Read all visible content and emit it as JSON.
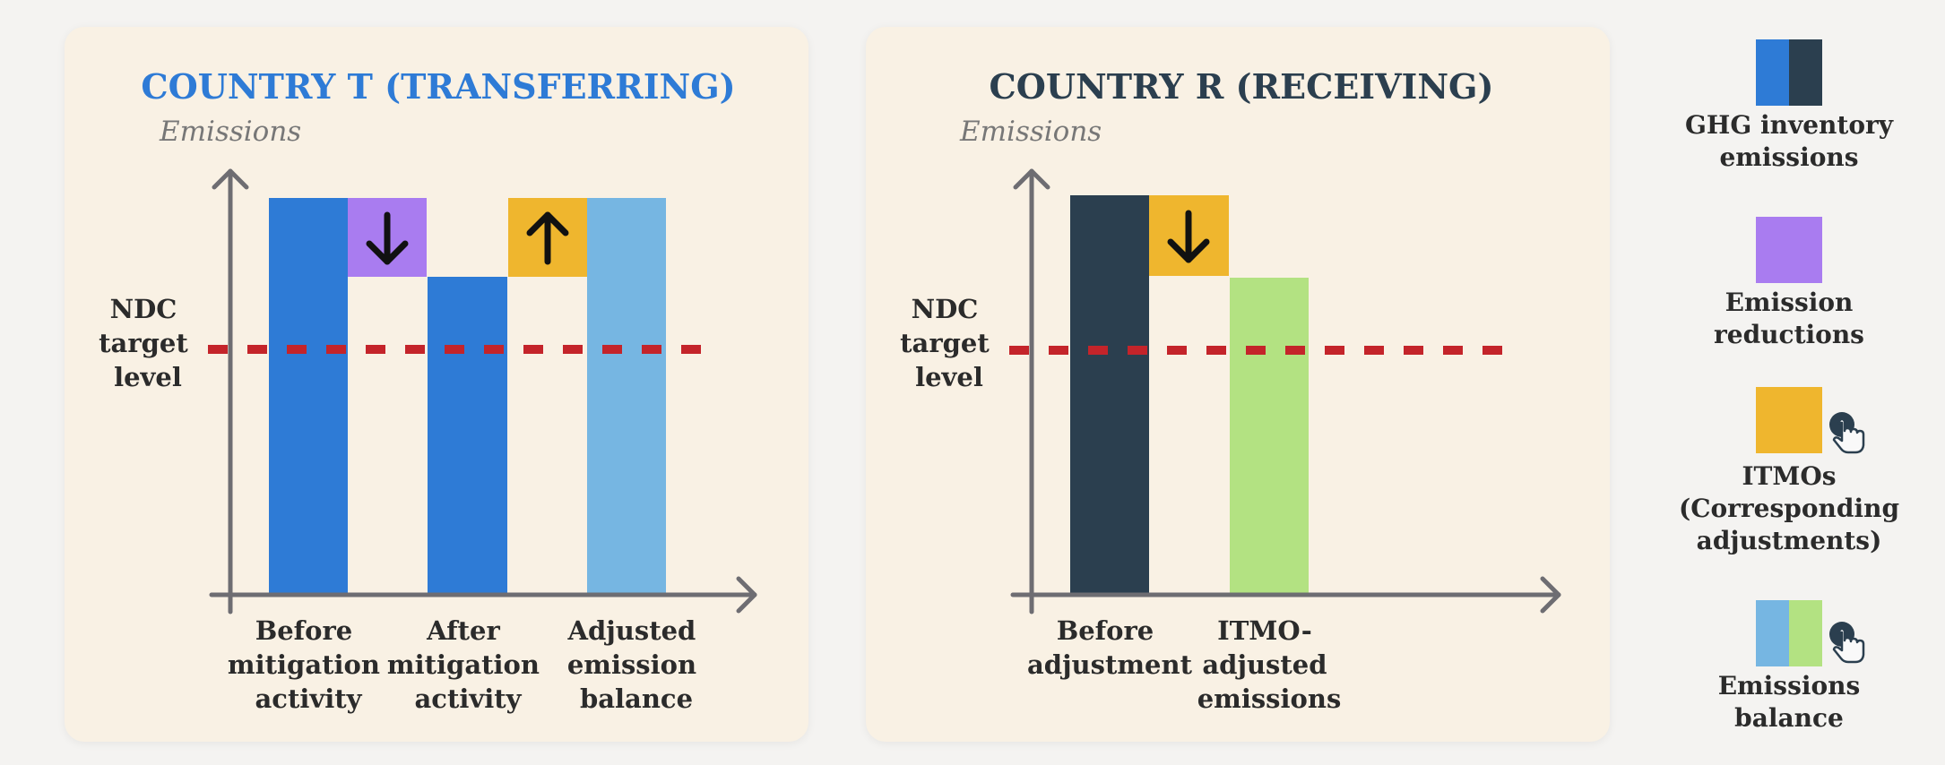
{
  "colors": {
    "ghg_t": "#2e7bd6",
    "ghg_r": "#2b3f4f",
    "reduction": "#a97cf0",
    "itmo": "#efb62e",
    "balance_t": "#76b6e2",
    "balance_r": "#b3e282",
    "ndc_line": "#c4242a",
    "axis": "#6e6d72",
    "title_t": "#2e7bd6",
    "title_r": "#2b3f4f"
  },
  "panel_t": {
    "title": "COUNTRY T (TRANSFERRING)",
    "y_axis_label": "Emissions",
    "ndc_label": [
      "NDC",
      "target",
      "level"
    ],
    "categories": [
      [
        "Before",
        "mitigation",
        "activity"
      ],
      [
        "After",
        "mitigation",
        "activity"
      ],
      [
        "Adjusted",
        "emission",
        "balance"
      ]
    ],
    "reduction_icon": "arrow-down-icon",
    "itmo_icon": "arrow-up-icon"
  },
  "panel_r": {
    "title": "COUNTRY R (RECEIVING)",
    "y_axis_label": "Emissions",
    "ndc_label": [
      "NDC",
      "target",
      "level"
    ],
    "categories": [
      [
        "Before",
        "adjustment"
      ],
      [
        "ITMO-",
        "adjusted",
        "emissions"
      ]
    ],
    "itmo_icon": "arrow-down-icon"
  },
  "legend": [
    {
      "label": "GHG inventory emissions",
      "lines": [
        "GHG inventory",
        "emissions"
      ],
      "swatch": "ghg-pair"
    },
    {
      "label": "Emission reductions",
      "lines": [
        "Emission",
        "reductions"
      ],
      "swatch": "reduction"
    },
    {
      "label": "ITMOs (Corresponding adjustments)",
      "lines": [
        "ITMOs",
        "(Corresponding",
        "adjustments)"
      ],
      "swatch": "itmo",
      "icon": "hand-pointer-icon"
    },
    {
      "label": "Emissions balance",
      "lines": [
        "Emissions",
        "balance"
      ],
      "swatch": "balance-pair",
      "icon": "hand-pointer-icon"
    }
  ]
}
